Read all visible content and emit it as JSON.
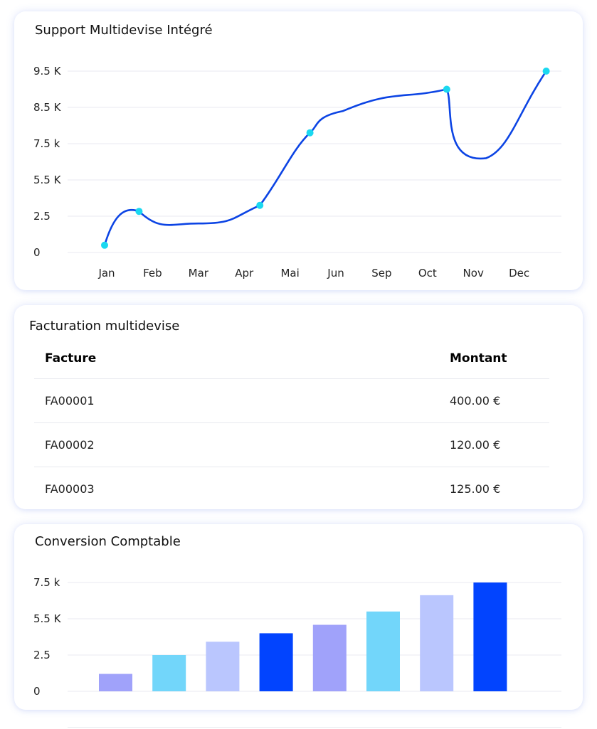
{
  "support_chart": {
    "title": "Support Multidevise Intégré",
    "y_ticks": [
      "0",
      "2.5",
      "5.5 K",
      "7.5 k",
      "8.5 K",
      "9.5 K"
    ],
    "x_ticks": [
      "Jan",
      "Feb",
      "Mar",
      "Apr",
      "Mai",
      "Jun",
      "Sep",
      "Oct",
      "Nov",
      "Dec"
    ],
    "line_color": "#0c44e4",
    "marker_color": "#1ad8f0"
  },
  "billing": {
    "title": "Facturation multidevise",
    "columns": [
      "Facture",
      "Montant"
    ],
    "rows": [
      {
        "invoice": "FA00001",
        "amount": "400.00 €"
      },
      {
        "invoice": "FA00002",
        "amount": "120.00 €"
      },
      {
        "invoice": "FA00003",
        "amount": "125.00 €"
      }
    ]
  },
  "conversion_chart": {
    "title": "Conversion Comptable",
    "y_ticks": [
      "0",
      "2.5",
      "5.5 K",
      "7.5 k"
    ]
  },
  "chart_data": [
    {
      "type": "line",
      "title": "Support Multidevise Intégré",
      "xlabel": "",
      "ylabel": "",
      "categories": [
        "Jan",
        "Feb",
        "Mar",
        "Apr",
        "Mai",
        "Jun",
        "Sep",
        "Oct",
        "Nov",
        "Dec"
      ],
      "y_tick_labels": [
        "0",
        "2.5",
        "5.5 K",
        "7.5 k",
        "8.5 K",
        "9.5 K"
      ],
      "markers": [
        {
          "x": "Jan",
          "y": 0.5
        },
        {
          "x": "Feb",
          "y": 2.9
        },
        {
          "x": "Apr",
          "y": 3.4
        },
        {
          "x": "Mai",
          "y": 7.8
        },
        {
          "x": "Oct",
          "y": 9.0
        },
        {
          "x": "Dec",
          "y": 9.5
        }
      ],
      "curve_values": [
        {
          "x": "Mar",
          "y": 2.0
        },
        {
          "x": "Jun",
          "y": 8.4
        },
        {
          "x": "Nov",
          "y": 6.7
        }
      ],
      "grid": true
    },
    {
      "type": "bar",
      "title": "Conversion Comptable",
      "xlabel": "",
      "ylabel": "",
      "y_tick_labels": [
        "0",
        "2.5",
        "5.5 K",
        "7.5 k"
      ],
      "values": [
        1.2,
        2.5,
        3.6,
        4.3,
        5.0,
        5.9,
        6.8,
        7.5
      ],
      "colors": [
        "#a0a2fa",
        "#72d6fa",
        "#bac6fe",
        "#0244fe",
        "#a0a2fa",
        "#72d6fa",
        "#bac6fe",
        "#0244fe"
      ],
      "grid": true
    }
  ]
}
